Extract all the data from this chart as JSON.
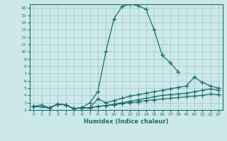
{
  "xlabel": "Humidex (Indice chaleur)",
  "bg_color": "#cde8e8",
  "grid_color": "#9dc8c8",
  "line_color": "#1a6e6e",
  "xlim": [
    -0.5,
    23.5
  ],
  "ylim": [
    2,
    16.5
  ],
  "xticks": [
    0,
    1,
    2,
    3,
    4,
    5,
    6,
    7,
    8,
    9,
    10,
    11,
    12,
    13,
    14,
    15,
    16,
    17,
    18,
    19,
    20,
    21,
    22,
    23
  ],
  "yticks": [
    2,
    3,
    4,
    5,
    6,
    7,
    8,
    9,
    10,
    11,
    12,
    13,
    14,
    15,
    16
  ],
  "line1_x": [
    0,
    1,
    2,
    3,
    4,
    5,
    6,
    7,
    8,
    9,
    10,
    11,
    12,
    13,
    14,
    15,
    16,
    17,
    18
  ],
  "line1_y": [
    2.5,
    2.7,
    2.3,
    2.8,
    2.7,
    2.2,
    2.3,
    3.0,
    4.5,
    10.0,
    14.5,
    16.2,
    16.5,
    16.3,
    15.8,
    13.0,
    9.5,
    8.5,
    7.2
  ],
  "line2_x": [
    0,
    2,
    3,
    4,
    5,
    6,
    7,
    8,
    9,
    10,
    11,
    12,
    13,
    14,
    15,
    16,
    17,
    18,
    19,
    20,
    21,
    22,
    23
  ],
  "line2_y": [
    2.5,
    2.3,
    2.8,
    2.7,
    2.2,
    2.3,
    2.3,
    3.5,
    3.0,
    3.3,
    3.6,
    3.9,
    4.1,
    4.3,
    4.5,
    4.7,
    4.9,
    5.1,
    5.3,
    6.5,
    5.8,
    5.3,
    5.0
  ],
  "line3_x": [
    0,
    2,
    3,
    4,
    5,
    6,
    7,
    8,
    9,
    10,
    11,
    12,
    13,
    14,
    15,
    16,
    17,
    18,
    19,
    20,
    21,
    22,
    23
  ],
  "line3_y": [
    2.5,
    2.3,
    2.8,
    2.7,
    2.2,
    2.3,
    2.3,
    2.5,
    2.6,
    2.8,
    3.0,
    3.2,
    3.4,
    3.6,
    3.8,
    4.0,
    4.1,
    4.2,
    4.3,
    4.5,
    4.7,
    4.9,
    4.7
  ],
  "line4_x": [
    0,
    2,
    3,
    4,
    5,
    6,
    7,
    8,
    9,
    10,
    11,
    12,
    13,
    14,
    15,
    16,
    17,
    18,
    19,
    20,
    21,
    22,
    23
  ],
  "line4_y": [
    2.5,
    2.3,
    2.8,
    2.7,
    2.2,
    2.3,
    2.3,
    2.5,
    2.6,
    2.7,
    2.9,
    3.0,
    3.1,
    3.3,
    3.4,
    3.5,
    3.6,
    3.7,
    3.8,
    3.9,
    4.0,
    4.2,
    4.1
  ]
}
